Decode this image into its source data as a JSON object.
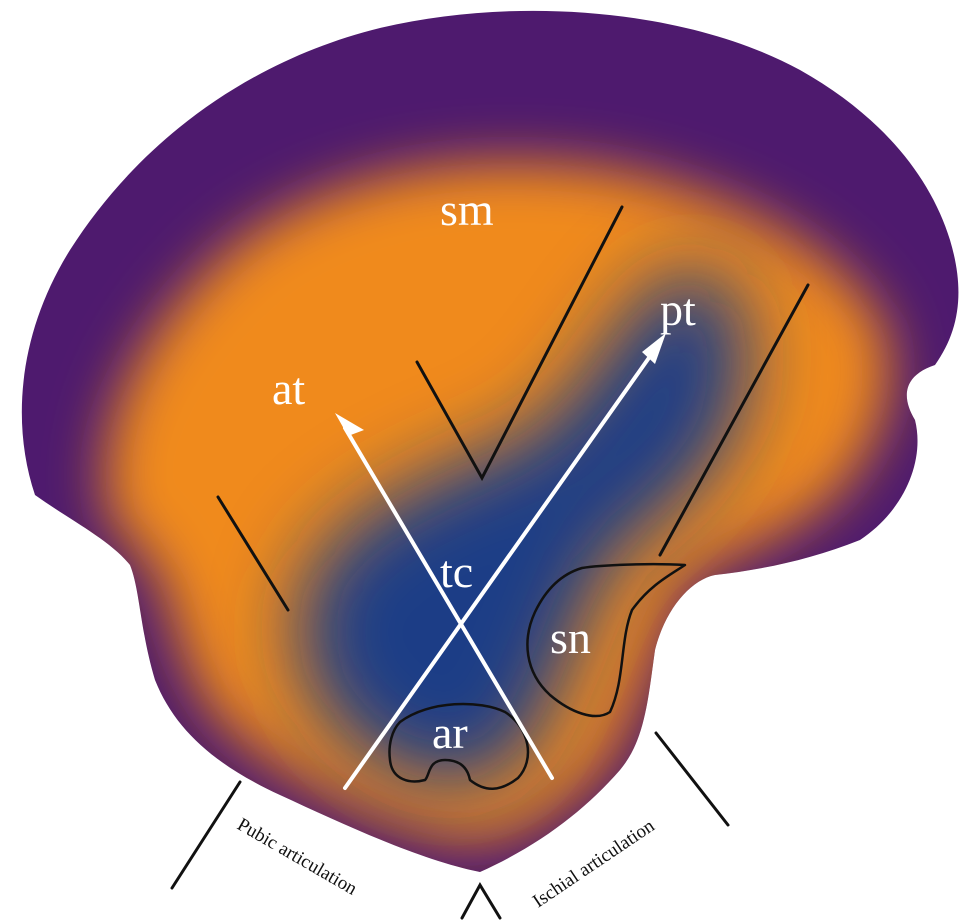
{
  "figure": {
    "colors": {
      "outer": "#4e1a6e",
      "mid": "#f08a1c",
      "core": "#1e3e86",
      "lines": "#111111",
      "arrows": "#ffffff",
      "labels": "#ffffff"
    },
    "regions": {
      "sm": "sm",
      "at": "at",
      "pt": "pt",
      "tc": "tc",
      "sn": "sn",
      "ar": "ar"
    },
    "articulations": {
      "pubic": "Pubic articulation",
      "ischial": "Ischial articulation"
    }
  }
}
